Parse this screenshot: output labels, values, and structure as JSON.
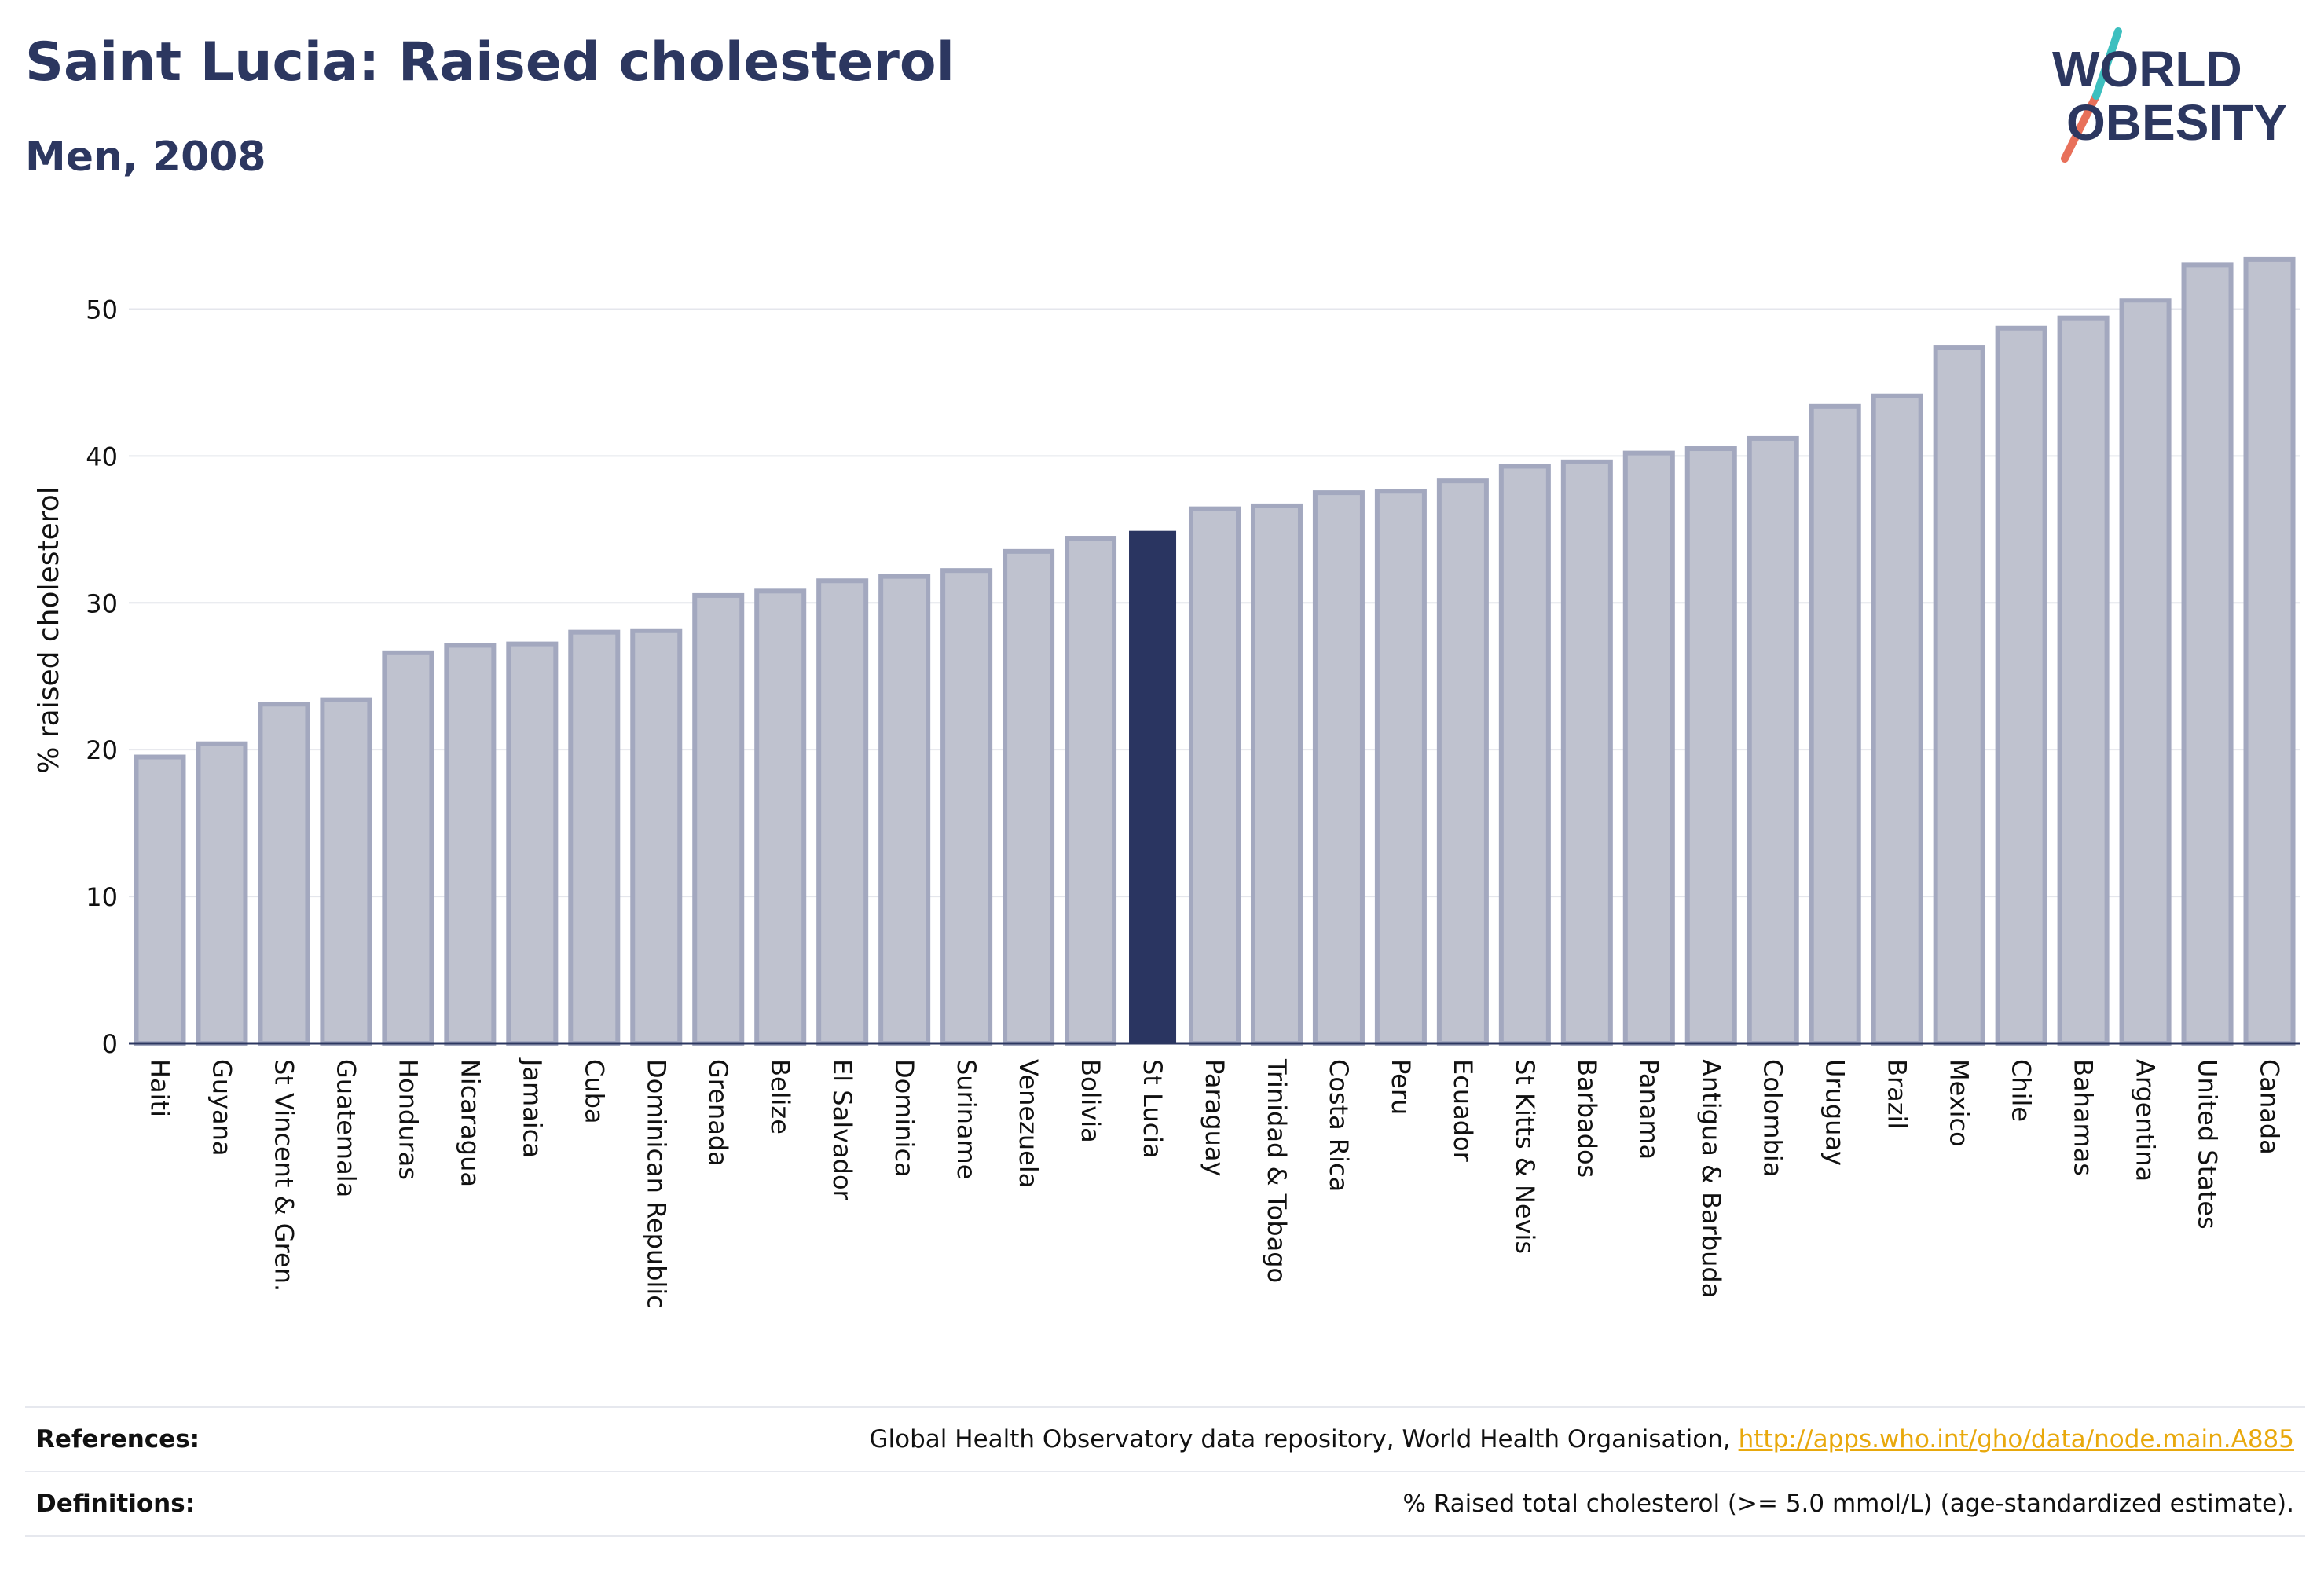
{
  "header": {
    "title": "Saint Lucia: Raised cholesterol",
    "subtitle": "Men, 2008"
  },
  "logo": {
    "line1": "WORLD",
    "line2": "OBESITY",
    "colors": {
      "text": "#2c3760",
      "slash_top": "#3dbfbf",
      "slash_bottom": "#e8705a"
    }
  },
  "chart_data": {
    "type": "bar",
    "ylabel": "% raised cholesterol",
    "xlabel": "",
    "ylim": [
      0,
      55
    ],
    "yticks": [
      0,
      10,
      20,
      30,
      40,
      50
    ],
    "grid": true,
    "highlight": "St Lucia",
    "colors": {
      "bar": "#bfc2cf",
      "bar_border": "#a3a8bf",
      "highlight": "#2a3561",
      "grid": "#e4e6ec",
      "axis": "#2c3760"
    },
    "categories": [
      "Haiti",
      "Guyana",
      "St Vincent & Gren.",
      "Guatemala",
      "Honduras",
      "Nicaragua",
      "Jamaica",
      "Cuba",
      "Dominican Republic",
      "Grenada",
      "Belize",
      "El Salvador",
      "Dominica",
      "Suriname",
      "Venezuela",
      "Bolivia",
      "St Lucia",
      "Paraguay",
      "Trinidad & Tobago",
      "Costa Rica",
      "Peru",
      "Ecuador",
      "St Kitts & Nevis",
      "Barbados",
      "Panama",
      "Antigua & Barbuda",
      "Colombia",
      "Uruguay",
      "Brazil",
      "Mexico",
      "Chile",
      "Bahamas",
      "Argentina",
      "United States",
      "Canada"
    ],
    "values": [
      19.5,
      20.4,
      23.1,
      23.4,
      26.6,
      27.1,
      27.2,
      28.0,
      28.1,
      30.5,
      30.8,
      31.5,
      31.8,
      32.2,
      33.5,
      34.4,
      34.9,
      36.4,
      36.6,
      37.5,
      37.6,
      38.3,
      39.3,
      39.6,
      40.2,
      40.5,
      41.2,
      43.4,
      44.1,
      47.4,
      48.7,
      49.4,
      50.6,
      53.0,
      53.4
    ]
  },
  "footer": {
    "references_label": "References:",
    "references_text": "Global Health Observatory data repository, World Health Organisation,",
    "references_link": "http://apps.who.int/gho/data/node.main.A885",
    "definitions_label": "Definitions:",
    "definitions_text": "% Raised total cholesterol (>= 5.0 mmol/L) (age-standardized estimate)."
  }
}
